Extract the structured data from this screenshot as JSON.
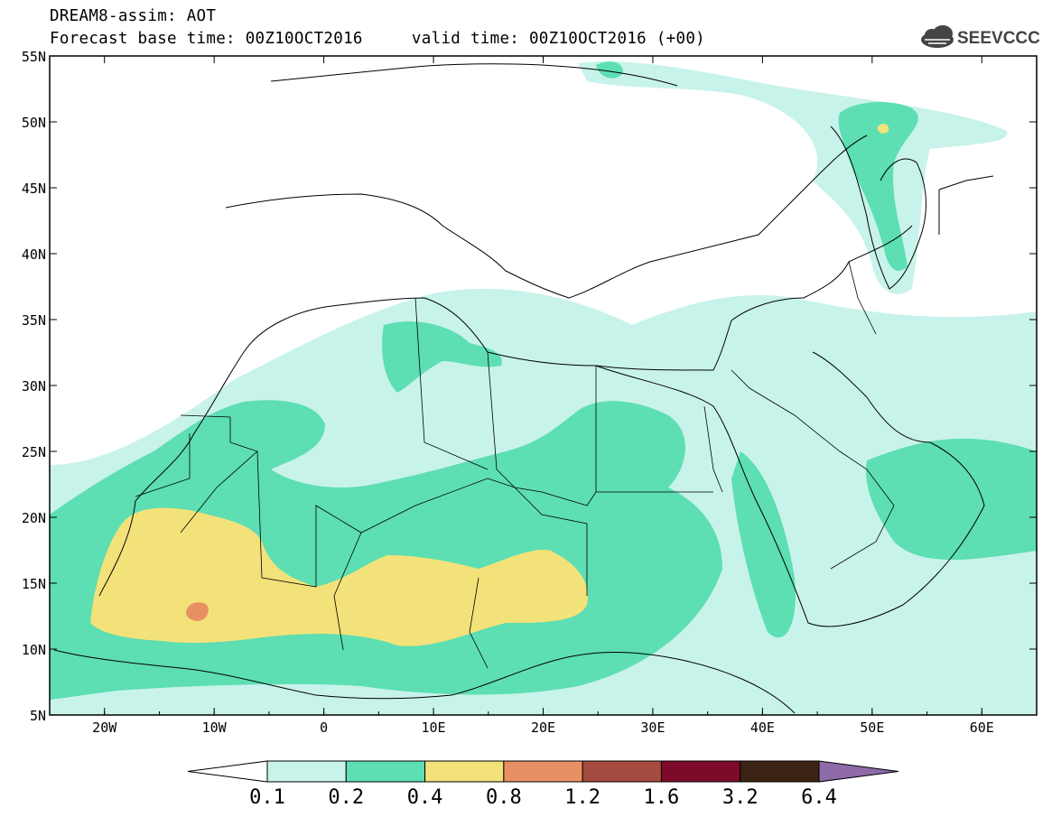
{
  "title": {
    "line1": "DREAM8-assim: AOT",
    "line2": "Forecast base time: 00Z10OCT2016     valid time: 00Z10OCT2016 (+00)"
  },
  "logo": {
    "text": "SEEVCCC",
    "icon": "cloud-icon"
  },
  "map": {
    "lon_range": [
      -25,
      65
    ],
    "lat_range": [
      5,
      55
    ],
    "lat_ticks": [
      "5N",
      "10N",
      "15N",
      "20N",
      "25N",
      "30N",
      "35N",
      "40N",
      "45N",
      "50N",
      "55N"
    ],
    "lon_ticks": [
      "20W",
      "10W",
      "0",
      "10E",
      "20E",
      "30E",
      "40E",
      "50E",
      "60E"
    ]
  },
  "colorbar": {
    "labels": [
      "0.1",
      "0.2",
      "0.4",
      "0.8",
      "1.2",
      "1.6",
      "3.2",
      "6.4"
    ],
    "colors": [
      "#ffffff",
      "#c8f3ea",
      "#5ddeb3",
      "#f3e27a",
      "#e89064",
      "#a64b3f",
      "#7c0a28",
      "#3b2314",
      "#8e6aa8"
    ]
  }
}
